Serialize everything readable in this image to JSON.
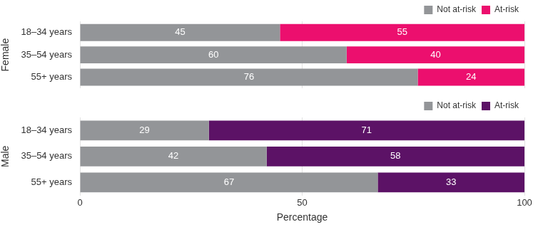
{
  "chart_data": [
    {
      "type": "bar",
      "orientation": "horizontal",
      "stacked": true,
      "y_label": "Female",
      "categories": [
        "18–34 years",
        "35–54 years",
        "55+ years"
      ],
      "series": [
        {
          "name": "Not at-risk",
          "color": "#939598",
          "values": [
            45,
            60,
            76
          ]
        },
        {
          "name": "At-risk",
          "color": "#ec0f6e",
          "values": [
            55,
            40,
            24
          ]
        }
      ],
      "xlim": [
        0,
        100
      ],
      "xticks": [
        0,
        50,
        100
      ],
      "grid": true,
      "legend": "top right",
      "data_labels": true,
      "tick_labels": "y"
    },
    {
      "type": "bar",
      "orientation": "horizontal",
      "stacked": true,
      "y_label": "Male",
      "x_label": "Percentage",
      "categories": [
        "18–34 years",
        "35–54 years",
        "55+ years"
      ],
      "series": [
        {
          "name": "Not at-risk",
          "color": "#939598",
          "values": [
            29,
            42,
            67
          ]
        },
        {
          "name": "At-risk",
          "color": "#5c1266",
          "values": [
            71,
            58,
            33
          ]
        }
      ],
      "xlim": [
        0,
        100
      ],
      "xticks": [
        0,
        50,
        100
      ],
      "grid": true,
      "legend": "top right",
      "data_labels": true
    }
  ]
}
